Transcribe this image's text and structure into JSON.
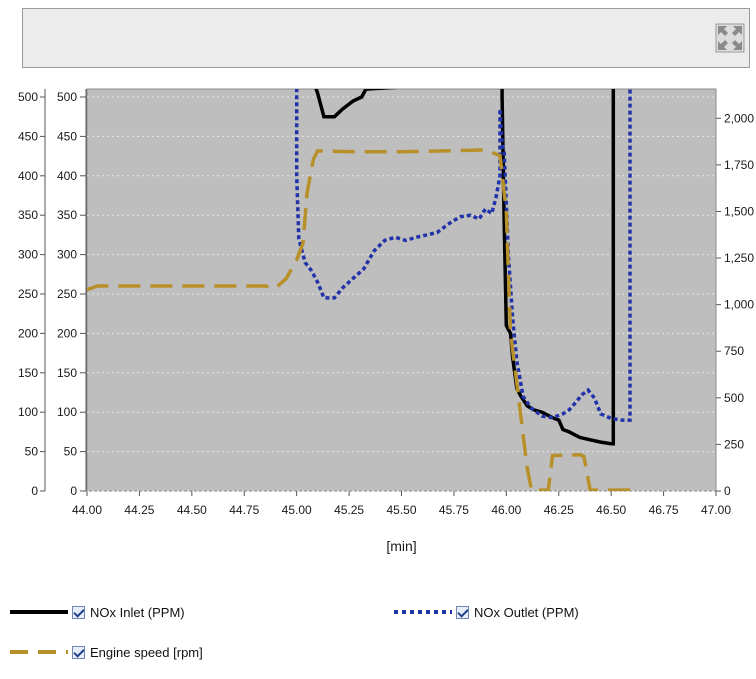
{
  "toolbar": {
    "expand_icon": "expand-arrows-icon"
  },
  "chart_data": {
    "type": "line",
    "xlabel": "[min]",
    "xlim": [
      44.0,
      47.0
    ],
    "x_ticks": [
      "44.00",
      "44.25",
      "44.50",
      "44.75",
      "45.00",
      "45.25",
      "45.50",
      "45.75",
      "46.00",
      "46.25",
      "46.50",
      "46.75",
      "47.00"
    ],
    "ylim_left": [
      0,
      500
    ],
    "y_ticks_left": [
      "0",
      "50",
      "100",
      "150",
      "200",
      "250",
      "300",
      "350",
      "400",
      "450",
      "500"
    ],
    "ylim_right": [
      0,
      2125
    ],
    "y_ticks_right": [
      "0",
      "250",
      "500",
      "750",
      "1,000",
      "1,250",
      "1,500",
      "1,750",
      "2,000"
    ],
    "y_ticks_right_values": [
      0,
      250,
      500,
      750,
      1000,
      1250,
      1500,
      1750,
      2000
    ],
    "grid": true,
    "background": "#bebebe",
    "series": [
      {
        "name": "NOx Inlet (PPM)",
        "axis": "left",
        "color": "#000000",
        "style": "solid",
        "points": [
          [
            45.08,
            520
          ],
          [
            45.08,
            520
          ],
          [
            45.1,
            505
          ],
          [
            45.13,
            475
          ],
          [
            45.18,
            475
          ],
          [
            45.22,
            485
          ],
          [
            45.27,
            495
          ],
          [
            45.31,
            500
          ],
          [
            45.33,
            510
          ],
          [
            45.98,
            520
          ],
          [
            45.98,
            500
          ],
          [
            45.99,
            340
          ],
          [
            46.0,
            210
          ],
          [
            46.02,
            200
          ],
          [
            46.03,
            170
          ],
          [
            46.05,
            130
          ],
          [
            46.07,
            120
          ],
          [
            46.1,
            108
          ],
          [
            46.13,
            103
          ],
          [
            46.17,
            100
          ],
          [
            46.2,
            96
          ],
          [
            46.22,
            93
          ],
          [
            46.25,
            90
          ],
          [
            46.27,
            78
          ],
          [
            46.3,
            75
          ],
          [
            46.35,
            68
          ],
          [
            46.4,
            65
          ],
          [
            46.45,
            62
          ],
          [
            46.5,
            60
          ],
          [
            46.51,
            60
          ],
          [
            46.51,
            520
          ]
        ]
      },
      {
        "name": "NOx Outlet (PPM)",
        "axis": "left",
        "color": "#2233aa",
        "style": "dotted",
        "points": [
          [
            45.0,
            520
          ],
          [
            45.0,
            400
          ],
          [
            45.01,
            320
          ],
          [
            45.04,
            290
          ],
          [
            45.07,
            280
          ],
          [
            45.1,
            265
          ],
          [
            45.13,
            245
          ],
          [
            45.18,
            245
          ],
          [
            45.22,
            258
          ],
          [
            45.27,
            270
          ],
          [
            45.32,
            282
          ],
          [
            45.37,
            305
          ],
          [
            45.42,
            318
          ],
          [
            45.47,
            322
          ],
          [
            45.52,
            318
          ],
          [
            45.57,
            322
          ],
          [
            45.62,
            325
          ],
          [
            45.67,
            328
          ],
          [
            45.73,
            340
          ],
          [
            45.78,
            348
          ],
          [
            45.83,
            350
          ],
          [
            45.87,
            345
          ],
          [
            45.9,
            358
          ],
          [
            45.93,
            352
          ],
          [
            45.95,
            372
          ],
          [
            45.97,
            400
          ],
          [
            45.97,
            485
          ],
          [
            45.98,
            440
          ],
          [
            45.99,
            430
          ],
          [
            46.01,
            300
          ],
          [
            46.03,
            220
          ],
          [
            46.05,
            165
          ],
          [
            46.08,
            120
          ],
          [
            46.12,
            105
          ],
          [
            46.17,
            95
          ],
          [
            46.22,
            93
          ],
          [
            46.27,
            98
          ],
          [
            46.3,
            103
          ],
          [
            46.33,
            112
          ],
          [
            46.36,
            122
          ],
          [
            46.39,
            128
          ],
          [
            46.42,
            118
          ],
          [
            46.45,
            98
          ],
          [
            46.5,
            92
          ],
          [
            46.55,
            90
          ],
          [
            46.59,
            90
          ],
          [
            46.59,
            520
          ]
        ]
      },
      {
        "name": "Engine speed [rpm]",
        "axis": "right",
        "color": "#b8902a",
        "style": "dashed",
        "points": [
          [
            44.0,
            1080
          ],
          [
            44.05,
            1100
          ],
          [
            44.85,
            1100
          ],
          [
            44.9,
            1090
          ],
          [
            44.95,
            1140
          ],
          [
            45.0,
            1240
          ],
          [
            45.03,
            1330
          ],
          [
            45.05,
            1600
          ],
          [
            45.08,
            1780
          ],
          [
            45.1,
            1825
          ],
          [
            45.3,
            1820
          ],
          [
            45.5,
            1820
          ],
          [
            45.7,
            1825
          ],
          [
            45.9,
            1830
          ],
          [
            45.97,
            1800
          ],
          [
            46.0,
            1500
          ],
          [
            46.02,
            850
          ],
          [
            46.05,
            580
          ],
          [
            46.08,
            300
          ],
          [
            46.1,
            120
          ],
          [
            46.12,
            5
          ],
          [
            46.2,
            5
          ],
          [
            46.22,
            190
          ],
          [
            46.35,
            195
          ],
          [
            46.37,
            185
          ],
          [
            46.4,
            5
          ],
          [
            46.62,
            5
          ]
        ]
      }
    ],
    "legend": {
      "placement": "bottom"
    }
  },
  "legend": [
    {
      "label": "NOx Inlet (PPM)",
      "checked": true
    },
    {
      "label": "NOx Outlet (PPM)",
      "checked": true
    },
    {
      "label": "Engine speed [rpm]",
      "checked": true
    }
  ]
}
